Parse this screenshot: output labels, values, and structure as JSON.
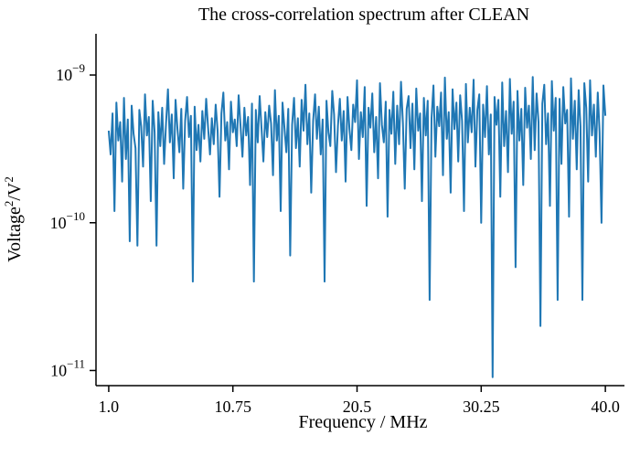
{
  "chart_data": {
    "type": "line",
    "title": "The cross-correlation spectrum after CLEAN",
    "xlabel": "Frequency / MHz",
    "ylabel_base": "Voltage",
    "ylabel_sep": "/V",
    "ylabel_exp": "2",
    "xlim": [
      0.0,
      41.5
    ],
    "ylim": [
      7.9e-12,
      1.9e-09
    ],
    "yscale": "log",
    "x_ticks": [
      {
        "value": 1.0,
        "label": "1.0"
      },
      {
        "value": 10.75,
        "label": "10.75"
      },
      {
        "value": 20.5,
        "label": "20.5"
      },
      {
        "value": 30.25,
        "label": "30.25"
      },
      {
        "value": 40.0,
        "label": "40.0"
      }
    ],
    "y_ticks": [
      {
        "value": 1e-09,
        "base": "10",
        "exp": "−9"
      },
      {
        "value": 1e-10,
        "base": "10",
        "exp": "−10"
      },
      {
        "value": 1e-11,
        "base": "10",
        "exp": "−11"
      }
    ],
    "line_color": "#1f77b4",
    "series": [
      {
        "name": "cross-correlation spectrum",
        "x_start": 1.0,
        "x_end": 40.0,
        "values": [
          4.2e-10,
          2.9e-10,
          5.5e-10,
          1.2e-10,
          6.5e-10,
          3.6e-10,
          4.8e-10,
          1.9e-10,
          7e-10,
          2.7e-10,
          5e-10,
          7.5e-11,
          6.2e-10,
          4e-10,
          3.2e-10,
          7e-11,
          5.8e-10,
          4.5e-10,
          2.4e-10,
          7.4e-10,
          3.9e-10,
          5.2e-10,
          1.4e-10,
          6.7e-10,
          4.1e-10,
          7e-11,
          5.6e-10,
          3.3e-10,
          6e-10,
          2.5e-10,
          4.7e-10,
          8e-10,
          3.5e-10,
          5.4e-10,
          2e-10,
          6.8e-10,
          4.3e-10,
          3e-10,
          5.9e-10,
          1.7e-10,
          4.9e-10,
          7.1e-10,
          3.8e-10,
          5.3e-10,
          4e-11,
          6.1e-10,
          3.1e-10,
          4.6e-10,
          2.6e-10,
          5.7e-10,
          3.7e-10,
          6.9e-10,
          4.4e-10,
          2.9e-10,
          5.1e-10,
          3.4e-10,
          6.3e-10,
          4.2e-10,
          1.5e-10,
          5.5e-10,
          7.6e-10,
          3.6e-10,
          4.8e-10,
          2.3e-10,
          6.6e-10,
          4.1e-10,
          5e-10,
          3.3e-10,
          7.3e-10,
          4.5e-10,
          2.8e-10,
          6e-10,
          3.9e-10,
          5.2e-10,
          1.8e-10,
          6.4e-10,
          4e-11,
          5.8e-10,
          3.5e-10,
          7.2e-10,
          4.3e-10,
          2.6e-10,
          5.6e-10,
          3.8e-10,
          6.2e-10,
          4.7e-10,
          2.1e-10,
          7.9e-10,
          3.6e-10,
          5.3e-10,
          1.2e-10,
          6.5e-10,
          4.4e-10,
          3e-10,
          5.9e-10,
          6e-11,
          4.6e-10,
          7e-10,
          3.2e-10,
          5.1e-10,
          2.4e-10,
          6.8e-10,
          4.2e-10,
          8.6e-10,
          3.4e-10,
          5.5e-10,
          1.6e-10,
          4.9e-10,
          7.4e-10,
          3.7e-10,
          6.1e-10,
          2.9e-10,
          5e-10,
          4e-11,
          6.7e-10,
          4.1e-10,
          3.3e-10,
          7.8e-10,
          5.4e-10,
          2.2e-10,
          4.5e-10,
          6.9e-10,
          3.6e-10,
          5.7e-10,
          1.9e-10,
          7.1e-10,
          4.3e-10,
          3.1e-10,
          6.3e-10,
          4.8e-10,
          9.2e-10,
          2.7e-10,
          5.6e-10,
          3.8e-10,
          8.3e-10,
          1.3e-10,
          6e-10,
          4.4e-10,
          7.5e-10,
          3e-10,
          5.2e-10,
          2e-10,
          8.8e-10,
          4.6e-10,
          3.5e-10,
          6.6e-10,
          1.1e-10,
          5.8e-10,
          4e-10,
          7.7e-10,
          2.5e-10,
          6.2e-10,
          3.4e-10,
          9e-10,
          4.7e-10,
          1.7e-10,
          5.9e-10,
          7.2e-10,
          3.2e-10,
          6.4e-10,
          2.3e-10,
          8.1e-10,
          4.2e-10,
          5.5e-10,
          1.4e-10,
          7e-10,
          3.9e-10,
          6.7e-10,
          3e-11,
          5.1e-10,
          8.5e-10,
          2.8e-10,
          6.1e-10,
          4.5e-10,
          7.6e-10,
          2.1e-10,
          9.6e-10,
          3.7e-10,
          5.6e-10,
          1.6e-10,
          8e-10,
          4.3e-10,
          6.5e-10,
          2.6e-10,
          7.3e-10,
          4.9e-10,
          1.2e-10,
          8.7e-10,
          3.5e-10,
          6e-10,
          4.1e-10,
          9.3e-10,
          2.4e-10,
          5.8e-10,
          7.4e-10,
          1e-10,
          6.3e-10,
          3.8e-10,
          8.4e-10,
          2.9e-10,
          5.4e-10,
          9e-12,
          7.1e-10,
          4.6e-10,
          6.8e-10,
          1.5e-10,
          8.9e-10,
          3.3e-10,
          5.7e-10,
          2.2e-10,
          9.4e-10,
          4e-10,
          6.6e-10,
          5e-11,
          7.8e-10,
          3.6e-10,
          5.9e-10,
          1.8e-10,
          8.2e-10,
          4.4e-10,
          6.2e-10,
          2.7e-10,
          9.7e-10,
          3.1e-10,
          7.5e-10,
          4.8e-10,
          2e-11,
          6.4e-10,
          8.6e-10,
          3.4e-10,
          5.5e-10,
          1.3e-10,
          9.1e-10,
          4.2e-10,
          7e-10,
          3e-11,
          6.9e-10,
          2.5e-10,
          8.3e-10,
          4.7e-10,
          5.8e-10,
          1.1e-10,
          9.5e-10,
          3.7e-10,
          6.7e-10,
          2.3e-10,
          7.9e-10,
          4.5e-10,
          3e-11,
          8.8e-10,
          6e-10,
          1.9e-10,
          9.2e-10,
          3.9e-10,
          6.3e-10,
          2.8e-10,
          7.6e-10,
          4.1e-10,
          1e-10,
          8.5e-10,
          5.3e-10
        ]
      }
    ]
  }
}
